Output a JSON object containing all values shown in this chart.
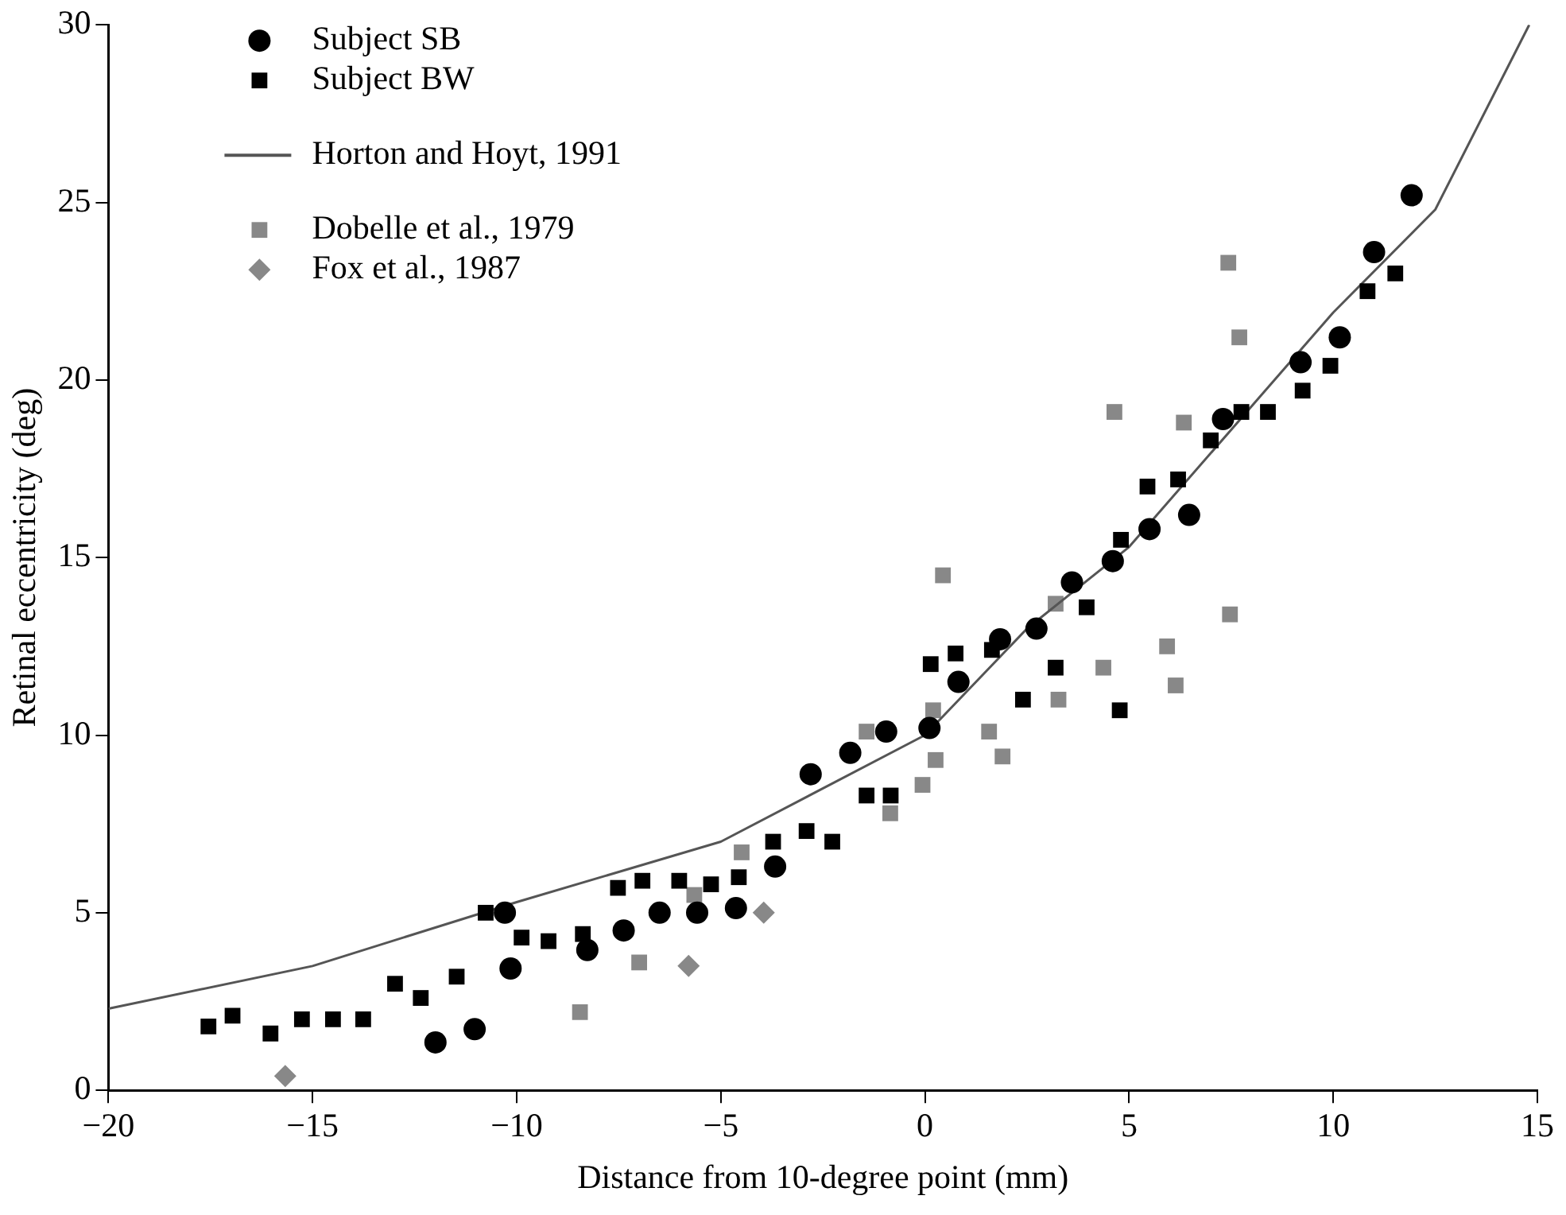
{
  "chart_data": {
    "type": "scatter",
    "xlabel": "Distance from 10-degree point (mm)",
    "ylabel": "Retinal eccentricity (deg)",
    "xlim": [
      -20,
      15
    ],
    "xticks": [
      {
        "value": -20,
        "label": "−20"
      },
      {
        "value": -15,
        "label": "−15"
      },
      {
        "value": -10,
        "label": "−10"
      },
      {
        "value": -5,
        "label": "−5"
      },
      0,
      5,
      10,
      15
    ],
    "ylim": [
      0,
      30
    ],
    "yticks": [
      0,
      5,
      10,
      15,
      20,
      25,
      30
    ],
    "grid": false,
    "legend": "top left",
    "series": [
      {
        "name": "Subject SB",
        "color": "#000000",
        "marker": "circle",
        "x": [
          -11.99,
          -11.03,
          -10.15,
          -10.29,
          -8.27,
          -7.38,
          -6.5,
          -5.58,
          -4.63,
          -3.67,
          -2.8,
          -1.83,
          -0.95,
          0.11,
          0.82,
          1.84,
          2.73,
          3.6,
          4.6,
          5.5,
          6.47,
          7.3,
          9.2,
          10.16,
          11.0,
          11.92
        ],
        "values": [
          1.35,
          1.72,
          3.43,
          5.0,
          3.95,
          4.5,
          5.0,
          5.0,
          5.13,
          6.3,
          8.9,
          9.5,
          10.1,
          10.2,
          11.5,
          12.7,
          13.0,
          14.3,
          14.9,
          15.8,
          16.2,
          18.9,
          20.5,
          21.2,
          23.6,
          25.2
        ]
      },
      {
        "name": "Subject BW",
        "color": "#000000",
        "marker": "square",
        "x": [
          -17.55,
          -16.96,
          -16.03,
          -15.26,
          -14.5,
          -13.76,
          -12.98,
          -12.35,
          -11.47,
          -10.76,
          -9.88,
          -9.22,
          -8.38,
          -7.52,
          -6.92,
          -6.02,
          -5.24,
          -4.56,
          -3.72,
          -2.9,
          -2.27,
          -1.43,
          -0.84,
          0.14,
          0.75,
          1.64,
          2.4,
          3.2,
          3.96,
          4.77,
          4.8,
          5.45,
          6.2,
          7.0,
          7.75,
          8.4,
          9.25,
          9.93,
          10.84,
          11.52
        ],
        "values": [
          1.8,
          2.1,
          1.6,
          2.0,
          2.0,
          2.0,
          3.0,
          2.6,
          3.2,
          5.0,
          4.3,
          4.2,
          4.4,
          5.7,
          5.9,
          5.9,
          5.8,
          6.0,
          7.0,
          7.3,
          7.0,
          8.3,
          8.3,
          12.0,
          12.3,
          12.4,
          11.0,
          11.9,
          13.6,
          10.7,
          15.5,
          17.0,
          17.2,
          18.3,
          19.1,
          19.1,
          19.7,
          20.4,
          22.5,
          23.0
        ]
      },
      {
        "name": "Horton and Hoyt, 1991",
        "color": "#555555",
        "type": "line",
        "marker": "none",
        "x": [
          -20,
          -15,
          -10,
          -5,
          0,
          2.5,
          5,
          7.5,
          10,
          12.5,
          14.8
        ],
        "values": [
          2.3,
          3.5,
          5.3,
          7.0,
          10.0,
          13.0,
          15.3,
          18.6,
          21.9,
          24.8,
          30
        ]
      },
      {
        "name": "Dobelle et al., 1979",
        "color": "#888888",
        "marker": "square",
        "x": [
          -8.45,
          -7.0,
          -5.65,
          -4.49,
          -1.43,
          -0.85,
          -0.06,
          0.26,
          0.2,
          0.44,
          1.57,
          1.9,
          3.2,
          3.27,
          4.37,
          4.64,
          4.77,
          5.93,
          6.14,
          6.34,
          7.43,
          7.47,
          7.7
        ],
        "values": [
          2.2,
          3.6,
          5.5,
          6.7,
          10.1,
          7.8,
          8.6,
          9.3,
          10.7,
          14.5,
          10.1,
          9.4,
          13.7,
          11.0,
          11.9,
          19.1,
          null,
          12.5,
          11.4,
          18.8,
          23.3,
          13.4,
          21.2
        ]
      },
      {
        "name": "Fox et al., 1987",
        "color": "#888888",
        "marker": "diamond",
        "x": [
          -15.67,
          -5.79,
          -3.95
        ],
        "values": [
          0.4,
          3.5,
          5.0
        ]
      }
    ]
  }
}
